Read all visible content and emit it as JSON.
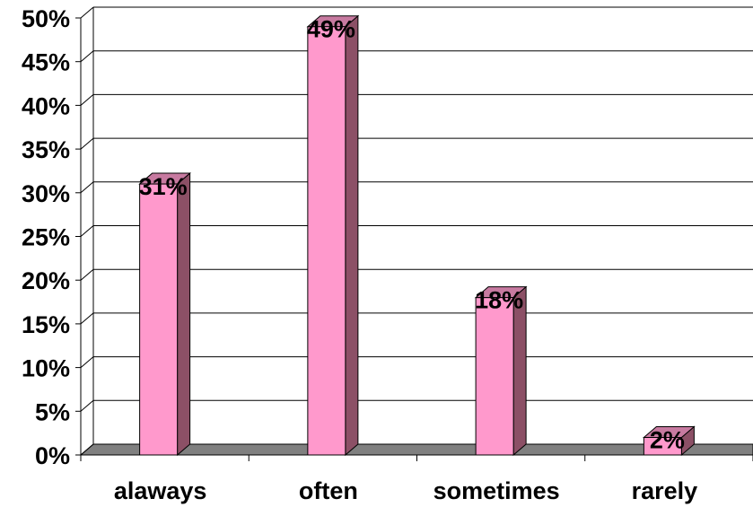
{
  "chart_data": {
    "type": "bar",
    "title": "",
    "xlabel": "",
    "ylabel": "",
    "categories": [
      "alaways",
      "often",
      "sometimes",
      "rarely"
    ],
    "values": [
      31,
      49,
      18,
      2
    ],
    "data_labels": [
      "31%",
      "49%",
      "18%",
      "2%"
    ],
    "ylim": [
      0,
      50
    ],
    "yticks": [
      0,
      5,
      10,
      15,
      20,
      25,
      30,
      35,
      40,
      45,
      50
    ],
    "ytick_labels": [
      "0%",
      "5%",
      "10%",
      "15%",
      "20%",
      "25%",
      "30%",
      "35%",
      "40%",
      "45%",
      "50%"
    ],
    "grid": true,
    "legend": "none",
    "style": "3d-column",
    "colors": {
      "bar_front": "#ff99cc",
      "bar_side": "#8c5066",
      "bar_top": "#c77aa0",
      "floor": "#808080",
      "gridline": "#000000"
    }
  }
}
